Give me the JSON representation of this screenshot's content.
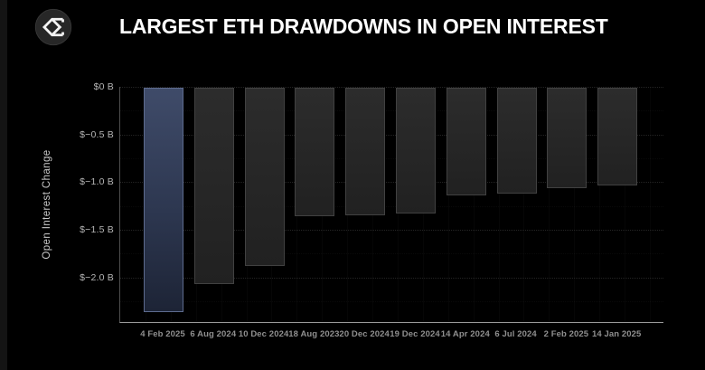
{
  "header": {
    "title": "LARGEST ETH DRAWDOWNS IN OPEN INTEREST",
    "logo_icon": "sigma-diamond-icon"
  },
  "chart_data": {
    "type": "bar",
    "title": "LARGEST ETH DRAWDOWNS IN OPEN INTEREST",
    "xlabel": "",
    "ylabel": "Open Interest Change",
    "unit": "billions USD",
    "categories": [
      "4 Feb 2025",
      "6 Aug 2024",
      "10 Dec 2024",
      "18 Aug 2023",
      "20 Dec 2024",
      "19 Dec 2024",
      "14 Apr 2024",
      "6 Jul 2024",
      "2 Feb 2025",
      "14 Jan 2025"
    ],
    "values": [
      -2.36,
      -2.06,
      -1.87,
      -1.35,
      -1.34,
      -1.32,
      -1.13,
      -1.11,
      -1.05,
      -1.03
    ],
    "highlight_index": 0,
    "ylim": [
      -2.47,
      0
    ],
    "ytick_values": [
      0,
      -0.5,
      -1.0,
      -1.5,
      -2.0
    ],
    "ytick_labels": [
      "$0 B",
      "$−0.5 B",
      "$−1.0 B",
      "$−1.5 B",
      "$−2.0 B"
    ],
    "grid": "horizontal-dotted",
    "legend_position": "none",
    "colors": {
      "background": "#000000",
      "title_text": "#ffffff",
      "bar_default_top": "#2c2c2c",
      "bar_default_bottom": "#212121",
      "bar_default_border": "#414141",
      "bar_highlight_top": "#3f4b69",
      "bar_highlight_bottom": "#1d2436",
      "bar_highlight_border": "#5d6b8e",
      "grid_line": "#242424",
      "x_axis_line": "#9a9a9a",
      "y_axis_line": "#4e4e4e",
      "ytick_text": "#b6b6b6",
      "xtick_text": "#8f8f8f",
      "ylabel_text": "#c9c9c9"
    }
  }
}
